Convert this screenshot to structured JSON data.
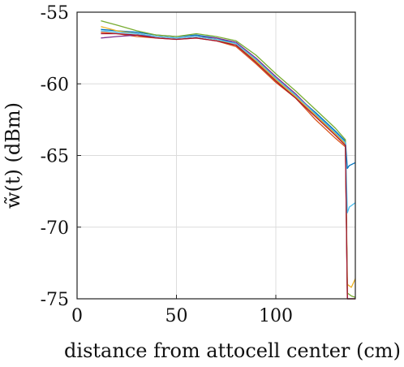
{
  "chart_data": {
    "type": "line",
    "xlabel": "distance from attocell center (cm)",
    "ylabel": "w̃(t) (dBm)",
    "xlim": [
      0,
      140
    ],
    "ylim": [
      -75,
      -55
    ],
    "xticks": [
      0,
      50,
      100
    ],
    "yticks": [
      -55,
      -60,
      -65,
      -70,
      -75
    ],
    "xtick_labels": [
      "0",
      "50",
      "100"
    ],
    "ytick_labels": [
      "-55",
      "-60",
      "-65",
      "-70",
      "-75"
    ],
    "grid": true,
    "series": [
      {
        "color": "#0072BD",
        "x": [
          12,
          20,
          30,
          40,
          50,
          60,
          70,
          80,
          90,
          100,
          110,
          120,
          130,
          135
        ],
        "y": [
          -56.2,
          -56.3,
          -56.4,
          -56.6,
          -56.7,
          -56.6,
          -56.8,
          -57.2,
          -58.3,
          -59.6,
          -60.8,
          -62.0,
          -63.3,
          -64.0
        ],
        "tail": {
          "x": [
            136,
            137,
            140
          ],
          "y": [
            -65.9,
            -65.7,
            -65.5
          ]
        }
      },
      {
        "color": "#D95319",
        "x": [
          12,
          20,
          30,
          40,
          50,
          60,
          70,
          80,
          90,
          100,
          110,
          120,
          130,
          135
        ],
        "y": [
          -56.4,
          -56.5,
          -56.7,
          -56.8,
          -56.9,
          -56.8,
          -57.0,
          -57.4,
          -58.6,
          -59.9,
          -61.0,
          -62.5,
          -63.8,
          -64.4
        ],
        "tail": {
          "x": [
            136,
            138,
            140
          ],
          "y": [
            -75.0,
            -75.0,
            -75.0
          ]
        }
      },
      {
        "color": "#EDB120",
        "x": [
          12,
          20,
          30,
          40,
          50,
          60,
          70,
          80,
          90,
          100,
          110,
          120,
          130,
          135
        ],
        "y": [
          -56.0,
          -56.3,
          -56.5,
          -56.7,
          -56.8,
          -56.7,
          -56.9,
          -57.3,
          -58.4,
          -59.7,
          -60.9,
          -62.2,
          -63.5,
          -64.2
        ],
        "tail": {
          "x": [
            136,
            138,
            140
          ],
          "y": [
            -74.0,
            -74.2,
            -73.6
          ]
        }
      },
      {
        "color": "#7E2F8E",
        "x": [
          12,
          20,
          30,
          40,
          50,
          60,
          70,
          80,
          90,
          100,
          110,
          120,
          130,
          135
        ],
        "y": [
          -56.8,
          -56.7,
          -56.6,
          -56.7,
          -56.8,
          -56.7,
          -56.8,
          -57.1,
          -58.2,
          -59.5,
          -60.7,
          -62.1,
          -63.4,
          -64.1
        ],
        "tail": {
          "x": [
            136,
            138,
            140
          ],
          "y": [
            -75.0,
            -75.0,
            -75.0
          ]
        }
      },
      {
        "color": "#77AC30",
        "x": [
          12,
          20,
          30,
          40,
          50,
          60,
          70,
          80,
          90,
          100,
          110,
          120,
          130,
          135
        ],
        "y": [
          -55.6,
          -55.9,
          -56.3,
          -56.6,
          -56.7,
          -56.5,
          -56.7,
          -57.0,
          -58.0,
          -59.3,
          -60.5,
          -61.8,
          -63.1,
          -63.9
        ],
        "tail": {
          "x": [
            136,
            138,
            140
          ],
          "y": [
            -74.6,
            -74.8,
            -74.9
          ]
        }
      },
      {
        "color": "#4DBEEE",
        "x": [
          12,
          20,
          30,
          40,
          50,
          60,
          70,
          80,
          90,
          100,
          110,
          120,
          130,
          135
        ],
        "y": [
          -56.3,
          -56.4,
          -56.5,
          -56.7,
          -56.8,
          -56.7,
          -56.9,
          -57.2,
          -58.3,
          -59.6,
          -60.8,
          -62.1,
          -63.4,
          -64.1
        ],
        "tail": {
          "x": [
            136,
            137,
            140
          ],
          "y": [
            -69.0,
            -68.6,
            -68.3
          ]
        }
      },
      {
        "color": "#A2142F",
        "x": [
          12,
          20,
          30,
          40,
          50,
          60,
          70,
          80,
          90,
          100,
          110,
          120,
          130,
          135
        ],
        "y": [
          -56.5,
          -56.5,
          -56.6,
          -56.8,
          -56.9,
          -56.8,
          -57.0,
          -57.3,
          -58.5,
          -59.8,
          -61.0,
          -62.3,
          -63.6,
          -64.3
        ],
        "tail": {
          "x": [
            136,
            138,
            140
          ],
          "y": [
            -75.0,
            -75.0,
            -75.0
          ]
        }
      }
    ]
  }
}
